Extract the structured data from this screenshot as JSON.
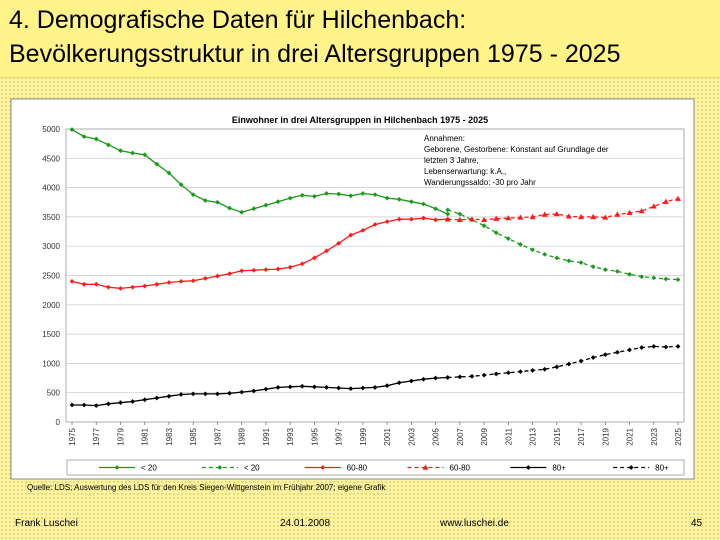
{
  "slide": {
    "title_line1": "4. Demografische Daten für Hilchenbach:",
    "title_line2": "Bevölkerungsstruktur in drei Altersgruppen 1975 - 2025",
    "source_note": "Quelle: LDS;   Auswertung des LDS für den Kreis Siegen-Wittgenstein im Frühjahr 2007; eigene Grafik",
    "footer_author": "Frank Luschei",
    "footer_date": "24.01.2008",
    "footer_url": "www.luschei.de",
    "footer_page": "45"
  },
  "colors": {
    "green": "#1a9a1a",
    "red": "#ff1a1a",
    "black": "#000000",
    "plot_bg": "#ffffff",
    "grid": "#c8c8c8"
  },
  "chart_data": {
    "type": "line",
    "title": "Einwohner in drei Altersgruppen in Hilchenbach 1975 - 2025",
    "xlabel": "",
    "ylabel": "",
    "ylim": [
      0,
      5000
    ],
    "yticks": [
      0,
      500,
      1000,
      1500,
      2000,
      2500,
      3000,
      3500,
      4000,
      4500,
      5000
    ],
    "xticks": [
      "1975",
      "1977",
      "1979",
      "1981",
      "1983",
      "1985",
      "1987",
      "1989",
      "1991",
      "1993",
      "1995",
      "1997",
      "1999",
      "2001",
      "2003",
      "2005",
      "2007",
      "2009",
      "2011",
      "2013",
      "2015",
      "2017",
      "2019",
      "2021",
      "2023",
      "2025"
    ],
    "grid": true,
    "legend_position": "bottom",
    "annotation": [
      "Annahmen:",
      "Geborene, Gestorbene: Konstant auf Grundlage der",
      "letzten 3 Jahre,",
      "Lebenserwartung: k.A.,",
      "Wanderungssaldo: -30 pro Jahr"
    ],
    "series": [
      {
        "name": "< 20",
        "color": "#1a9a1a",
        "dash": false,
        "marker": "diamond",
        "x": [
          1975,
          1976,
          1977,
          1978,
          1979,
          1980,
          1981,
          1982,
          1983,
          1984,
          1985,
          1986,
          1987,
          1988,
          1989,
          1990,
          1991,
          1992,
          1993,
          1994,
          1995,
          1996,
          1997,
          1998,
          1999,
          2000,
          2001,
          2002,
          2003,
          2004,
          2005,
          2006
        ],
        "y": [
          4990,
          4870,
          4830,
          4730,
          4630,
          4590,
          4560,
          4400,
          4250,
          4050,
          3880,
          3780,
          3750,
          3650,
          3580,
          3640,
          3700,
          3760,
          3820,
          3870,
          3850,
          3900,
          3890,
          3860,
          3900,
          3880,
          3820,
          3800,
          3760,
          3720,
          3640,
          3550
        ]
      },
      {
        "name": "< 20",
        "color": "#1a9a1a",
        "dash": true,
        "marker": "diamond",
        "x": [
          2006,
          2007,
          2008,
          2009,
          2010,
          2011,
          2012,
          2013,
          2014,
          2015,
          2016,
          2017,
          2018,
          2019,
          2020,
          2021,
          2022,
          2023,
          2024,
          2025
        ],
        "y": [
          3620,
          3550,
          3450,
          3350,
          3230,
          3130,
          3030,
          2940,
          2860,
          2800,
          2750,
          2720,
          2650,
          2600,
          2570,
          2520,
          2480,
          2460,
          2440,
          2430
        ]
      },
      {
        "name": "60-80",
        "color": "#ff1a1a",
        "dash": false,
        "marker": "diamond",
        "x": [
          1975,
          1976,
          1977,
          1978,
          1979,
          1980,
          1981,
          1982,
          1983,
          1984,
          1985,
          1986,
          1987,
          1988,
          1989,
          1990,
          1991,
          1992,
          1993,
          1994,
          1995,
          1996,
          1997,
          1998,
          1999,
          2000,
          2001,
          2002,
          2003,
          2004,
          2005,
          2006
        ],
        "y": [
          2400,
          2350,
          2350,
          2300,
          2280,
          2300,
          2320,
          2350,
          2380,
          2400,
          2410,
          2450,
          2490,
          2530,
          2580,
          2590,
          2600,
          2610,
          2640,
          2700,
          2800,
          2920,
          3050,
          3190,
          3270,
          3370,
          3420,
          3460,
          3460,
          3480,
          3450,
          3460
        ]
      },
      {
        "name": "60-80",
        "color": "#ff1a1a",
        "dash": true,
        "marker": "triangle",
        "x": [
          2006,
          2007,
          2008,
          2009,
          2010,
          2011,
          2012,
          2013,
          2014,
          2015,
          2016,
          2017,
          2018,
          2019,
          2020,
          2021,
          2022,
          2023,
          2024,
          2025
        ],
        "y": [
          3460,
          3450,
          3460,
          3450,
          3470,
          3480,
          3490,
          3500,
          3540,
          3550,
          3510,
          3500,
          3500,
          3490,
          3540,
          3570,
          3600,
          3680,
          3760,
          3810
        ]
      },
      {
        "name": "80+",
        "color": "#000000",
        "dash": false,
        "marker": "diamond",
        "x": [
          1975,
          1976,
          1977,
          1978,
          1979,
          1980,
          1981,
          1982,
          1983,
          1984,
          1985,
          1986,
          1987,
          1988,
          1989,
          1990,
          1991,
          1992,
          1993,
          1994,
          1995,
          1996,
          1997,
          1998,
          1999,
          2000,
          2001,
          2002,
          2003,
          2004,
          2005,
          2006
        ],
        "y": [
          290,
          290,
          280,
          310,
          330,
          350,
          380,
          410,
          440,
          470,
          480,
          480,
          480,
          490,
          510,
          530,
          560,
          590,
          600,
          610,
          600,
          590,
          580,
          570,
          580,
          590,
          620,
          670,
          700,
          730,
          750,
          760
        ]
      },
      {
        "name": "80+",
        "color": "#000000",
        "dash": true,
        "marker": "diamond",
        "x": [
          2006,
          2007,
          2008,
          2009,
          2010,
          2011,
          2012,
          2013,
          2014,
          2015,
          2016,
          2017,
          2018,
          2019,
          2020,
          2021,
          2022,
          2023,
          2024,
          2025
        ],
        "y": [
          760,
          770,
          780,
          800,
          820,
          840,
          860,
          880,
          900,
          940,
          990,
          1040,
          1100,
          1150,
          1190,
          1230,
          1270,
          1290,
          1280,
          1290
        ]
      }
    ]
  }
}
